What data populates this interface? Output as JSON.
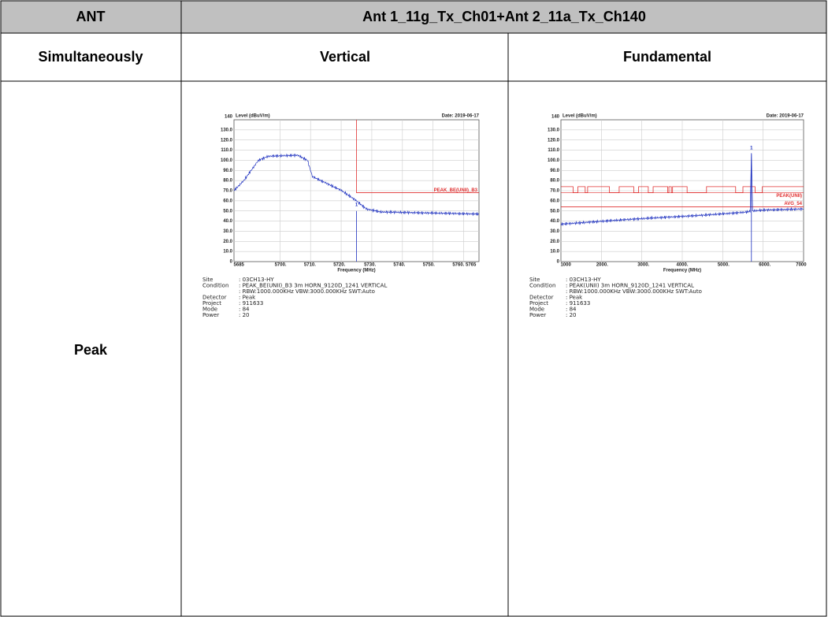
{
  "table": {
    "header": [
      "ANT",
      "Ant 1_11g_Tx_Ch01+Ant 2_11a_Tx_Ch140"
    ],
    "subheader": [
      "Simultaneously",
      "Vertical",
      "Fundamental"
    ],
    "row_label": "Peak"
  },
  "plots": [
    {
      "y_axis_label": "Level (dBuV/m)",
      "date": "Date: 2019-06-17",
      "y_tick_labels": [
        "140",
        "130.0",
        "120.0",
        "110.0",
        "100.0",
        "90.0",
        "80.0",
        "70.0",
        "60.0",
        "50.0",
        "40.0",
        "30.0",
        "20.0",
        "10.0",
        "0"
      ],
      "x_tick_labels": [
        "5685",
        "5700.",
        "5710.",
        "5720.",
        "5730.",
        "5740.",
        "5750.",
        "5760. 5765"
      ],
      "x_axis_label": "Frequency (MHz)",
      "limit_labels": [
        "PEAK_BE(UNII)_B3"
      ],
      "marker_label": "1",
      "info": [
        {
          "label": "Site",
          "value": ": 03CH13-HY"
        },
        {
          "label": "Condition",
          "value": ": PEAK_BE(UNII)_B3 3m HORN_9120D_1241 VERTICAL"
        },
        {
          "value": ": RBW:1000.000KHz VBW:3000.000KHz SWT:Auto"
        },
        {
          "label": "Detector",
          "value": ": Peak"
        },
        {
          "label": "Project",
          "value": ": 911633"
        },
        {
          "label": "Mode",
          "value": ": 84"
        },
        {
          "label": "Power",
          "value": ": 20"
        }
      ]
    },
    {
      "y_axis_label": "Level (dBuV/m)",
      "date": "Date: 2019-06-17",
      "y_tick_labels": [
        "140",
        "130.0",
        "120.0",
        "110.0",
        "100.0",
        "90.0",
        "80.0",
        "70.0",
        "60.0",
        "50.0",
        "40.0",
        "30.0",
        "20.0",
        "10.0",
        "0"
      ],
      "x_tick_labels": [
        "1000",
        "2000.",
        "3000.",
        "4000.",
        "5000.",
        "6000.",
        "7000"
      ],
      "x_axis_label": "Frequency (MHz)",
      "limit_labels": [
        "PEAK(UNII)",
        "AVG_54"
      ],
      "marker_label": "1",
      "info": [
        {
          "label": "Site",
          "value": ": 03CH13-HY"
        },
        {
          "label": "Condition",
          "value": ": PEAK(UNII) 3m HORN_9120D_1241 VERTICAL"
        },
        {
          "value": ": RBW:1000.000KHz VBW:3000.000KHz SWT:Auto"
        },
        {
          "label": "Detector",
          "value": ": Peak"
        },
        {
          "label": "Project",
          "value": ": 911633"
        },
        {
          "label": "Mode",
          "value": ": 84"
        },
        {
          "label": "Power",
          "value": ": 20"
        }
      ]
    }
  ]
}
